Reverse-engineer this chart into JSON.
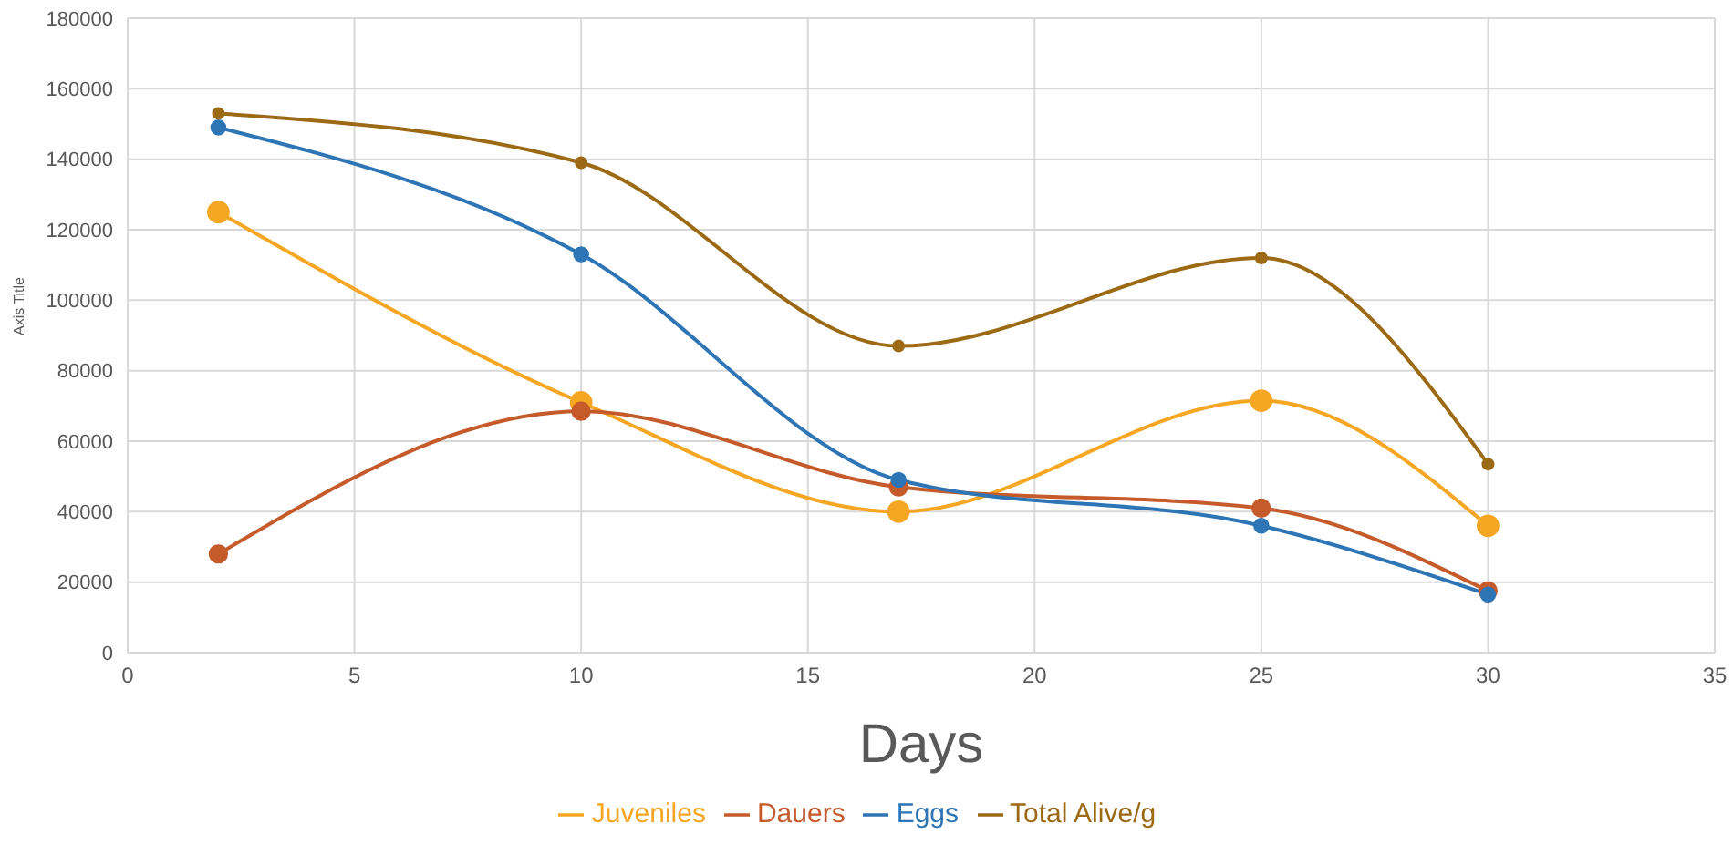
{
  "chart_data": {
    "type": "line",
    "xlabel": "Days",
    "ylabel": "Axis Title",
    "x": [
      2,
      10,
      17,
      25,
      30
    ],
    "series": [
      {
        "name": "Juveniles",
        "color": "#f5a623",
        "values": [
          125000,
          71000,
          40000,
          71500,
          36000
        ]
      },
      {
        "name": "Dauers",
        "color": "#c55a2b",
        "values": [
          28000,
          68500,
          47000,
          41000,
          17500
        ]
      },
      {
        "name": "Eggs",
        "color": "#2e75b6",
        "values": [
          149000,
          113000,
          49000,
          36000,
          16500
        ]
      },
      {
        "name": "Total Alive/g",
        "color": "#9c6a14",
        "values": [
          153000,
          139000,
          87000,
          112000,
          53500
        ]
      }
    ],
    "xlim": [
      0,
      35
    ],
    "xticks": [
      0,
      5,
      10,
      15,
      20,
      25,
      30,
      35
    ],
    "ylim": [
      0,
      180000
    ],
    "yticks": [
      0,
      20000,
      40000,
      60000,
      80000,
      100000,
      120000,
      140000,
      160000,
      180000
    ],
    "grid": true,
    "legend": "bottom",
    "marker": "circle",
    "line_style": "solid"
  }
}
